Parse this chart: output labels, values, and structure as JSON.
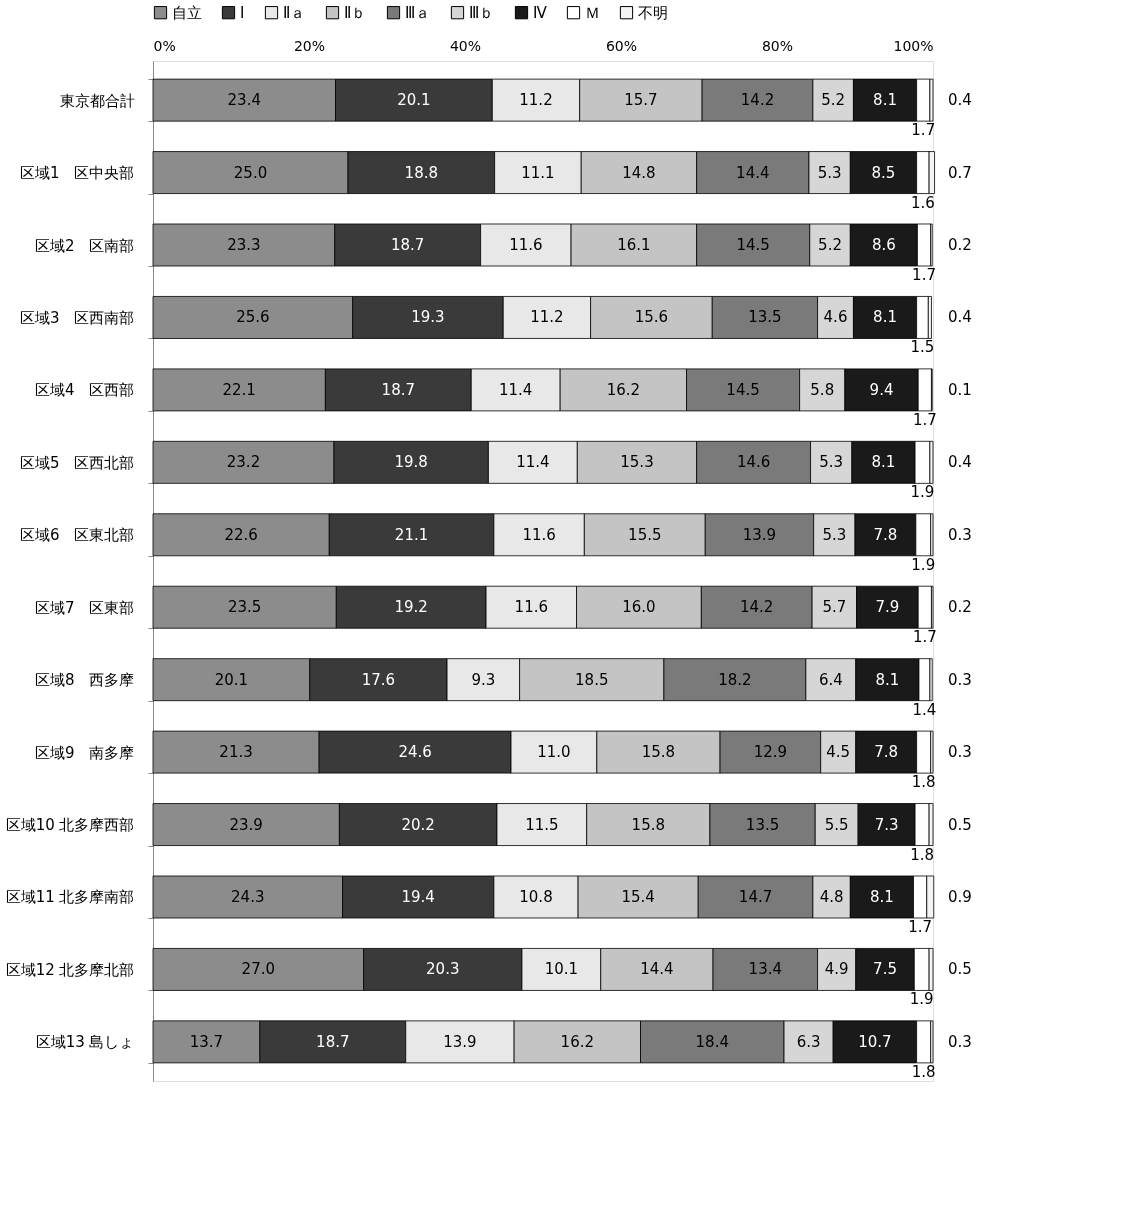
{
  "chart_data": {
    "type": "bar",
    "orientation": "horizontal",
    "stacked": true,
    "legend": "top",
    "grid": false,
    "categories": [
      "東京都合計",
      "区域1　区中央部",
      "区域2　区南部",
      "区域3　区西南部",
      "区域4　区西部",
      "区域5　区西北部",
      "区域6　区東北部",
      "区域7　区東部",
      "区域8　西多摩",
      "区域9　南多摩",
      "区域10 北多摩西部",
      "区域11 北多摩南部",
      "区域12 北多摩北部",
      "区域13 島しょ"
    ],
    "xlim": [
      0,
      100
    ],
    "xticks": [
      {
        "value": 0,
        "label": "0%"
      },
      {
        "value": 20,
        "label": "20%"
      },
      {
        "value": 40,
        "label": "40%"
      },
      {
        "value": 60,
        "label": "60%"
      },
      {
        "value": 80,
        "label": "80%"
      },
      {
        "value": 100,
        "label": "100%"
      }
    ],
    "series": [
      {
        "name": "自立",
        "color": "#8c8c8c",
        "values": [
          23.4,
          25.0,
          23.3,
          25.6,
          22.1,
          23.2,
          22.6,
          23.5,
          20.1,
          21.3,
          23.9,
          24.3,
          27.0,
          13.7
        ],
        "value_labels": [
          "23.4",
          "25.0",
          "23.3",
          "25.6",
          "22.1",
          "23.2",
          "22.6",
          "23.5",
          "20.1",
          "21.3",
          "23.9",
          "24.3",
          "27.0",
          "13.7"
        ]
      },
      {
        "name": "Ⅰ",
        "color": "#3a3a3a",
        "values": [
          20.1,
          18.8,
          18.7,
          19.3,
          18.7,
          19.8,
          21.1,
          19.2,
          17.6,
          24.6,
          20.2,
          19.4,
          20.3,
          18.7
        ],
        "value_labels": [
          "20.1",
          "18.8",
          "18.7",
          "19.3",
          "18.7",
          "19.8",
          "21.1",
          "19.2",
          "17.6",
          "24.6",
          "20.2",
          "19.4",
          "20.3",
          "18.7"
        ]
      },
      {
        "name": "Ⅱａ",
        "color": "#e8e8e8",
        "values": [
          11.2,
          11.1,
          11.6,
          11.2,
          11.4,
          11.4,
          11.6,
          11.6,
          9.3,
          11.0,
          11.5,
          10.8,
          10.1,
          13.9
        ],
        "value_labels": [
          "11.2",
          "11.1",
          "11.6",
          "11.2",
          "11.4",
          "11.4",
          "11.6",
          "11.6",
          "9.3",
          "11.0",
          "11.5",
          "10.8",
          "10.1",
          "13.9"
        ]
      },
      {
        "name": "Ⅱｂ",
        "color": "#c4c4c4",
        "values": [
          15.7,
          14.8,
          16.1,
          15.6,
          16.2,
          15.3,
          15.5,
          16.0,
          18.5,
          15.8,
          15.8,
          15.4,
          14.4,
          16.2
        ],
        "value_labels": [
          "15.7",
          "14.8",
          "16.1",
          "15.6",
          "16.2",
          "15.3",
          "15.5",
          "16.0",
          "18.5",
          "15.8",
          "15.8",
          "15.4",
          "14.4",
          "16.2"
        ]
      },
      {
        "name": "Ⅲａ",
        "color": "#7a7a7a",
        "values": [
          14.2,
          14.4,
          14.5,
          13.5,
          14.5,
          14.6,
          13.9,
          14.2,
          18.2,
          12.9,
          13.5,
          14.7,
          13.4,
          18.4
        ],
        "value_labels": [
          "14.2",
          "14.4",
          "14.5",
          "13.5",
          "14.5",
          "14.6",
          "13.9",
          "14.2",
          "18.2",
          "12.9",
          "13.5",
          "14.7",
          "13.4",
          "18.4"
        ]
      },
      {
        "name": "Ⅲｂ",
        "color": "#d6d6d6",
        "values": [
          5.2,
          5.3,
          5.2,
          4.6,
          5.8,
          5.3,
          5.3,
          5.7,
          6.4,
          4.5,
          5.5,
          4.8,
          4.9,
          6.3
        ],
        "value_labels": [
          "5.2",
          "5.3",
          "5.2",
          "4.6",
          "5.8",
          "5.3",
          "5.3",
          "5.7",
          "6.4",
          "4.5",
          "5.5",
          "4.8",
          "4.9",
          "6.3"
        ]
      },
      {
        "name": "Ⅳ",
        "color": "#1a1a1a",
        "values": [
          8.1,
          8.5,
          8.6,
          8.1,
          9.4,
          8.1,
          7.8,
          7.9,
          8.1,
          7.8,
          7.3,
          8.1,
          7.5,
          10.7
        ],
        "value_labels": [
          "8.1",
          "8.5",
          "8.6",
          "8.1",
          "9.4",
          "8.1",
          "7.8",
          "7.9",
          "8.1",
          "7.8",
          "7.3",
          "8.1",
          "7.5",
          "10.7"
        ]
      },
      {
        "name": "Ｍ",
        "color": "#ffffff",
        "values": [
          1.7,
          1.6,
          1.7,
          1.5,
          1.7,
          1.9,
          1.9,
          1.7,
          1.4,
          1.8,
          1.8,
          1.7,
          1.9,
          1.8
        ],
        "value_labels": [
          "1.7",
          "1.6",
          "1.7",
          "1.5",
          "1.7",
          "1.9",
          "1.9",
          "1.7",
          "1.4",
          "1.8",
          "1.8",
          "1.7",
          "1.9",
          "1.8"
        ]
      },
      {
        "name": "不明",
        "color": "#f4f4f4",
        "values": [
          0.4,
          0.7,
          0.2,
          0.4,
          0.1,
          0.4,
          0.3,
          0.2,
          0.3,
          0.3,
          0.5,
          0.9,
          0.5,
          0.3
        ],
        "value_labels": [
          "0.4",
          "0.7",
          "0.2",
          "0.4",
          "0.1",
          "0.4",
          "0.3",
          "0.2",
          "0.3",
          "0.3",
          "0.5",
          "0.9",
          "0.5",
          "0.3"
        ]
      }
    ]
  }
}
